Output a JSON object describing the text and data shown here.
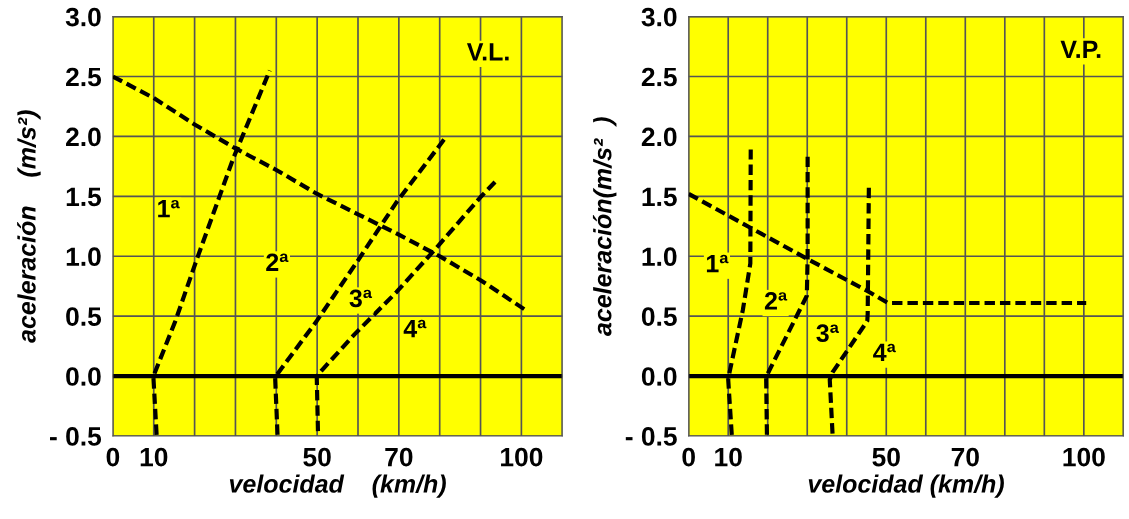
{
  "chart_data": [
    {
      "type": "line",
      "xlabel": "velocidad    (km/h)",
      "ylabel": "aceleración    (m/s²)",
      "xlim": [
        0,
        110
      ],
      "ylim": [
        -0.5,
        3.0
      ],
      "xticks": [
        0,
        10,
        {
          "value": 20,
          "label": null
        },
        {
          "value": 30,
          "label": null
        },
        {
          "value": 40,
          "label": null
        },
        50,
        {
          "value": 60,
          "label": null
        },
        70,
        {
          "value": 80,
          "label": null
        },
        {
          "value": 90,
          "label": null
        },
        100,
        {
          "value": 110,
          "label": null
        }
      ],
      "yticks": [
        {
          "value": -0.5,
          "label": "- 0.5"
        },
        {
          "value": 0,
          "label": "0.0"
        },
        0.5,
        {
          "value": 1,
          "label": "1.0"
        },
        1.5,
        {
          "value": 2,
          "label": "2.0"
        },
        2.5,
        {
          "value": 3,
          "label": "3.0"
        }
      ],
      "grid": true,
      "line_style": "dashed",
      "marker": "none",
      "ref_lines": [
        {
          "axis": "y",
          "value": 0,
          "color": "#000000",
          "line_style": "solid"
        }
      ],
      "series": [
        {
          "color": "#000000",
          "x": [
            0,
            10,
            20,
            30,
            40,
            50,
            60,
            70,
            80,
            90,
            101.5
          ],
          "values": [
            2.5,
            2.32,
            2.1,
            1.9,
            1.72,
            1.52,
            1.35,
            1.18,
            1.0,
            0.8,
            0.54
          ]
        },
        {
          "color": "#000000",
          "x": [
            10.7,
            9.9,
            10.4,
            15.3,
            20.6,
            29.5,
            38.4
          ],
          "values": [
            -0.49,
            0,
            0.04,
            0.46,
            0.98,
            1.82,
            2.55
          ]
        },
        {
          "color": "#000000",
          "x": [
            40.3,
            39.7,
            40.1,
            49.9,
            59.7,
            69.4,
            81.2
          ],
          "values": [
            -0.49,
            0,
            0.01,
            0.46,
            0.95,
            1.45,
            1.98
          ]
        },
        {
          "color": "#000000",
          "x": [
            50.2,
            49.9,
            51.2,
            59.2,
            69.4,
            79.2,
            89.9,
            94.1
          ],
          "values": [
            -0.46,
            0,
            0.05,
            0.35,
            0.7,
            1.07,
            1.49,
            1.64
          ]
        }
      ],
      "annotations": [
        "1ª",
        "2ª",
        "3ª",
        "4ª",
        "V.L."
      ]
    },
    {
      "type": "line",
      "xlabel": "velocidad (km/h)",
      "ylabel": "aceleración(m/s²  )",
      "xlim": [
        0,
        110
      ],
      "ylim": [
        -0.5,
        3.0
      ],
      "xticks": [
        0,
        10,
        {
          "value": 20,
          "label": null
        },
        {
          "value": 30,
          "label": null
        },
        {
          "value": 40,
          "label": null
        },
        50,
        {
          "value": 60,
          "label": null
        },
        70,
        {
          "value": 80,
          "label": null
        },
        {
          "value": 90,
          "label": null
        },
        100,
        {
          "value": 110,
          "label": null
        }
      ],
      "yticks": [
        {
          "value": -0.5,
          "label": "- 0.5"
        },
        {
          "value": 0,
          "label": "0.0"
        },
        0.5,
        {
          "value": 1,
          "label": "1.0"
        },
        1.5,
        {
          "value": 2,
          "label": "2.0"
        },
        2.5,
        {
          "value": 3,
          "label": "3.0"
        }
      ],
      "grid": true,
      "line_style": "dashed",
      "marker": "none",
      "ref_lines": [
        {
          "axis": "y",
          "value": 0,
          "color": "#000000",
          "line_style": "solid"
        }
      ],
      "series": [
        {
          "color": "#000000",
          "x": [
            0,
            15.5,
            29.9,
            45.2,
            50.4,
            100.6
          ],
          "values": [
            1.52,
            1.24,
            0.98,
            0.71,
            0.61,
            0.61
          ]
        },
        {
          "color": "#000000",
          "x": [
            10.9,
            10,
            10.2,
            13.7,
            15.6,
            15.7
          ],
          "values": [
            -0.49,
            -0.03,
            0.01,
            0.55,
            0.94,
            1.89
          ]
        },
        {
          "color": "#000000",
          "x": [
            19.8,
            19.6,
            20.3,
            29.9,
            30.1,
            30.1
          ],
          "values": [
            -0.49,
            -0.01,
            0.04,
            0.67,
            1.0,
            1.83
          ]
        },
        {
          "color": "#000000",
          "x": [
            36.4,
            35.7,
            36.4,
            45.2,
            45.3,
            45.6
          ],
          "values": [
            -0.48,
            -0.03,
            0.03,
            0.46,
            0.52,
            1.59
          ]
        }
      ],
      "annotations": [
        "1ª",
        "2ª",
        "3ª",
        "4ª",
        "V.P."
      ]
    }
  ]
}
